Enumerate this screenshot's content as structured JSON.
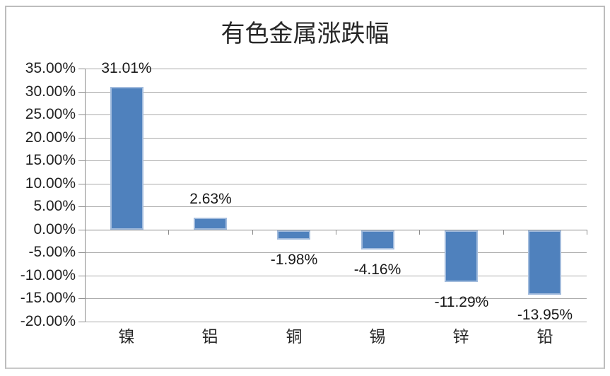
{
  "chart_data": {
    "type": "bar",
    "title": "有色金属涨跌幅",
    "categories": [
      "镍",
      "铝",
      "铜",
      "锡",
      "锌",
      "铅"
    ],
    "values": [
      31.01,
      2.63,
      -1.98,
      -4.16,
      -11.29,
      -13.95
    ],
    "data_labels": [
      "31.01%",
      "2.63%",
      "-1.98%",
      "-4.16%",
      "-11.29%",
      "-13.95%"
    ],
    "y_ticks": [
      35,
      30,
      25,
      20,
      15,
      10,
      5,
      0,
      -5,
      -10,
      -15,
      -20
    ],
    "y_tick_labels": [
      "35.00%",
      "30.00%",
      "25.00%",
      "20.00%",
      "15.00%",
      "10.00%",
      "5.00%",
      "0.00%",
      "-5.00%",
      "-10.00%",
      "-15.00%",
      "-20.00%"
    ],
    "ylim": [
      -20,
      35
    ],
    "xlabel": "",
    "ylabel": "",
    "grid": true,
    "legend_position": "none",
    "colors": {
      "bar_fill": "#4f81bd",
      "bar_border": "#a3bcdd",
      "gridline": "#a9a9a9",
      "axis": "#8c8c8c",
      "text": "#1a1a1a",
      "frame_border": "#bdbdbd",
      "background": "#ffffff"
    }
  }
}
